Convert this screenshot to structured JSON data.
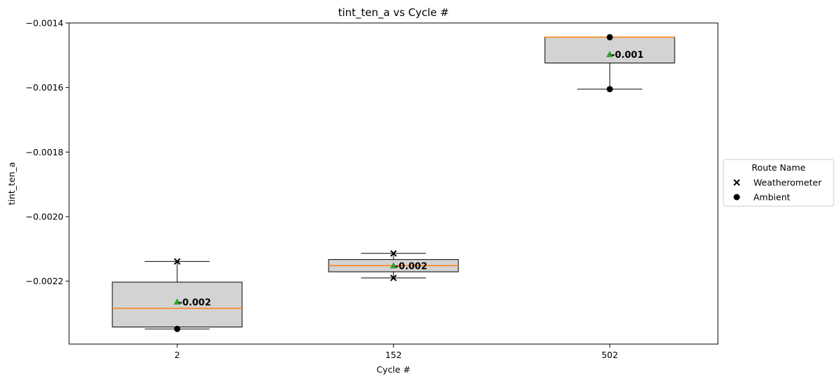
{
  "chart_data": {
    "type": "box",
    "title": "tint_ten_a vs Cycle #",
    "xlabel": "Cycle #",
    "ylabel": "tint_ten_a",
    "categories": [
      "2",
      "152",
      "502"
    ],
    "ylim": [
      -0.002395,
      -0.0014
    ],
    "yticks": [
      -0.0014,
      -0.0016,
      -0.0018,
      -0.002,
      -0.0022
    ],
    "ytick_labels": [
      "−0.0014",
      "−0.0016",
      "−0.0018",
      "−0.0020",
      "−0.0022"
    ],
    "boxes": [
      {
        "category": "2",
        "whisker_low": -0.002348,
        "q1": -0.002342,
        "median": -0.002284,
        "q3": -0.002203,
        "whisker_high": -0.002139,
        "mean": -0.002264,
        "mean_label": "-0.002"
      },
      {
        "category": "152",
        "whisker_low": -0.00219,
        "q1": -0.002171,
        "median": -0.002152,
        "q3": -0.002133,
        "whisker_high": -0.002114,
        "mean": -0.002152,
        "mean_label": "-0.002"
      },
      {
        "category": "502",
        "whisker_low": -0.001605,
        "q1": -0.001524,
        "median": -0.001444,
        "q3": -0.001444,
        "whisker_high": -0.001444,
        "mean": -0.001497,
        "mean_label": "-0.001"
      }
    ],
    "points": [
      {
        "category": "2",
        "route": "Weatherometer",
        "y": -0.002139
      },
      {
        "category": "2",
        "route": "Ambient",
        "y": -0.002348
      },
      {
        "category": "152",
        "route": "Weatherometer",
        "y": -0.002114
      },
      {
        "category": "152",
        "route": "Weatherometer",
        "y": -0.00219
      },
      {
        "category": "502",
        "route": "Ambient",
        "y": -0.001444
      },
      {
        "category": "502",
        "route": "Ambient",
        "y": -0.001605
      }
    ],
    "legend": {
      "title": "Route Name",
      "placement": "right",
      "entries": [
        {
          "name": "Weatherometer",
          "marker": "x"
        },
        {
          "name": "Ambient",
          "marker": "circle"
        }
      ]
    },
    "colors": {
      "box_fill": "#d3d3d3",
      "median": "#ff7f0e",
      "mean_marker": "#2ca02c",
      "edge": "#000000"
    }
  }
}
